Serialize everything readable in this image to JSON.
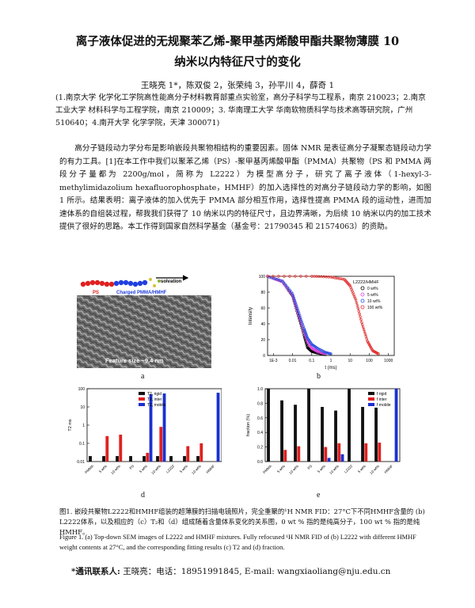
{
  "title_line1": "离子液体促进的无规聚苯乙烯-聚甲基丙烯酸甲酯共聚物薄膜 10",
  "title_line2": "纳米以内特征尺寸的变化",
  "authors": "王晓亮 1*，陈双俊 2，张荣纯 3，孙平川 4，薛奇 1",
  "affiliations": "(1.南京大学 化学化工学院高性能高分子材料教育部重点实验室，高分子科学与工程系，南京 210023；2.南京工业大学 材料科学与工程学院，南京 210009；3. 华南理工大学 华南软物质科学与技术高等研究院，广州 510640；4.南开大学 化学学院，天津 300071)",
  "abstract": "高分子链段动力学分布是影响嵌段共聚物相结构的重要因素。固体 NMR 是表征高分子凝聚态链段动力学的有力工具。[1]在本工作中我们以聚苯乙烯（PS）-聚甲基丙烯酸甲酯（PMMA）共聚物（PS 和 PMMA 两段分子量都为 2200g/mol，简称为 L2222）为模型高分子，研究了离子液体（1-hexyl-3-methylimidazolium hexafluorophosphate，HMHF）的加入选择性的对高分子链段动力学的影响，如图 1 所示。结果表明：离子液体的加入优先于 PMMA 部分相互作用，选择性提高 PMMA 段的运动性，进而加速体系的自组装过程，帮我我们获得了 10 纳米以内的特征尺寸，且边界清晰，为后续 10 纳米以内的加工技术提供了很好的思路。本工作得到国家自然科学基金（基金号：21790345 和 21574063）的资助。",
  "panel_labels": {
    "a": "a",
    "b": "b",
    "d": "d",
    "e": "e"
  },
  "sem": {
    "solvation": "solvation",
    "ps": "PS",
    "charged": "Charged PMMA/HMHF",
    "feature": "Feature size ~9.4 nm"
  },
  "caption_cn": "图1. 嵌段共聚物L2222和HMHF组装的超薄膜的扫描电镜照片，完全重聚的¹H NMR FID：27°C下不同HMHF含量的 (b) L2222体系，以及相应的（c）T₂和（d）组成随着含量体系变化的关系图，0 wt % 指的是纯高分子，100 wt % 指的是纯HMHF。",
  "caption_en": "Figure 1. (a) Top-down SEM images of L2222 and HMHF mixtures. Fully refocused ¹H NMR FID of (b) L2222 with different HMHF weight contents at 27°C, and the corresponding fitting results (c) T2 and (d) fraction.",
  "contact_label": "*通讯联系人:",
  "contact_text": " 王晓亮：电话：18951991845, E-mail: wangxiaoliang@nju.edu.cn",
  "chart_data": [
    {
      "type": "line",
      "panel": "b",
      "title": "L2222/HMHF",
      "xlabel": "t (ms)",
      "ylabel": "Intensity",
      "xscale": "log",
      "xlim": [
        0.0005,
        2000
      ],
      "ylim": [
        0,
        100
      ],
      "xticks": [
        "1E-3",
        "0.01",
        "0.1",
        "1",
        "10",
        "100",
        "1000"
      ],
      "yticks": [
        "0",
        "20",
        "40",
        "60",
        "80",
        "100"
      ],
      "legend_position": "top-right",
      "series": [
        {
          "name": "0 wt%",
          "color": "#000000",
          "x": [
            0.0005,
            0.003,
            0.01,
            0.02,
            0.04,
            0.06,
            0.1,
            0.2,
            0.5
          ],
          "y": [
            100,
            93,
            75,
            50,
            25,
            10,
            5,
            3,
            1
          ]
        },
        {
          "name": "5 wt%",
          "color": "#e040e0",
          "x": [
            0.0005,
            0.003,
            0.01,
            0.02,
            0.04,
            0.06,
            0.1,
            0.2,
            0.5
          ],
          "y": [
            100,
            93,
            76,
            52,
            30,
            18,
            9,
            5,
            2
          ]
        },
        {
          "name": "10 wt%",
          "color": "#3050e0",
          "x": [
            0.0005,
            0.003,
            0.01,
            0.02,
            0.04,
            0.06,
            0.1,
            0.2,
            0.5,
            1
          ],
          "y": [
            100,
            94,
            78,
            56,
            34,
            22,
            14,
            9,
            4,
            2
          ]
        },
        {
          "name": "100 wt%",
          "color": "#e03030",
          "x": [
            0.0005,
            0.1,
            1,
            5,
            10,
            20,
            40,
            80,
            150,
            300
          ],
          "y": [
            100,
            100,
            99,
            96,
            88,
            70,
            42,
            18,
            6,
            2
          ]
        }
      ]
    },
    {
      "type": "bar",
      "panel": "d",
      "ylabel": "T2 ms",
      "yscale": "log",
      "ylim": [
        0.01,
        100
      ],
      "yticks": [
        "0.01",
        "0.1",
        "1",
        "10",
        "100"
      ],
      "legend_position": "top-center",
      "categories": [
        "PMMA",
        "5 wt%",
        "10 wt%",
        "PS",
        "5 wt%",
        "10 wt%",
        "L2222",
        "5 wt%",
        "10 wt%",
        "HMHF"
      ],
      "series": [
        {
          "name": "T2, rigid",
          "color": "#111111",
          "values": [
            0.02,
            0.02,
            0.02,
            0.02,
            0.02,
            0.02,
            0.02,
            0.02,
            0.02,
            null
          ]
        },
        {
          "name": "T2, inter",
          "color": "#e02020",
          "values": [
            null,
            0.25,
            0.3,
            null,
            0.03,
            0.8,
            null,
            0.07,
            0.1,
            null
          ]
        },
        {
          "name": "T2, mobile",
          "color": "#1a30d0",
          "values": [
            null,
            null,
            null,
            null,
            50,
            55,
            null,
            null,
            null,
            60
          ]
        }
      ]
    },
    {
      "type": "bar",
      "panel": "e",
      "ylabel": "fraction (%)",
      "ylim": [
        0,
        1
      ],
      "yticks": [
        "0.0",
        "0.2",
        "0.4",
        "0.6",
        "0.8",
        "1.0"
      ],
      "legend_position": "top-right",
      "categories": [
        "PMMA",
        "5 wt%",
        "10 wt%",
        "PS",
        "5 wt%",
        "10 wt%",
        "L2222",
        "5 wt%",
        "10 wt%",
        "HMHF"
      ],
      "series": [
        {
          "name": "f rigid",
          "color": "#111111",
          "values": [
            1.0,
            0.84,
            0.78,
            1.0,
            0.75,
            0.7,
            1.0,
            0.75,
            0.74,
            null
          ]
        },
        {
          "name": "f inter",
          "color": "#e02020",
          "values": [
            null,
            0.16,
            0.21,
            null,
            0.2,
            0.25,
            null,
            0.25,
            0.26,
            null
          ]
        },
        {
          "name": "f mobile",
          "color": "#1a30d0",
          "values": [
            null,
            null,
            null,
            null,
            0.05,
            0.1,
            null,
            null,
            null,
            1.0
          ]
        }
      ]
    }
  ]
}
